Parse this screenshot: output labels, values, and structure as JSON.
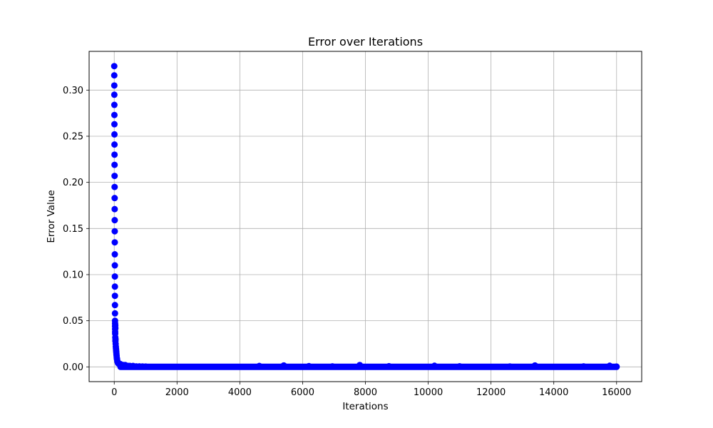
{
  "chart_data": {
    "type": "scatter",
    "title": "Error over Iterations",
    "xlabel": "Iterations",
    "ylabel": "Error Value",
    "xlim": [
      -800,
      16800
    ],
    "ylim": [
      -0.016,
      0.342
    ],
    "xticks": [
      0,
      2000,
      4000,
      6000,
      8000,
      10000,
      12000,
      14000,
      16000
    ],
    "xtick_labels": [
      "0",
      "2000",
      "4000",
      "6000",
      "8000",
      "10000",
      "12000",
      "14000",
      "16000"
    ],
    "yticks": [
      0.0,
      0.05,
      0.1,
      0.15,
      0.2,
      0.25,
      0.3
    ],
    "ytick_labels": [
      "0.00",
      "0.05",
      "0.10",
      "0.15",
      "0.20",
      "0.25",
      "0.30"
    ],
    "grid": true,
    "marker_color": "#0000ff",
    "series": [
      {
        "x": [
          0,
          1,
          2,
          3,
          4,
          5,
          6,
          7,
          8,
          9,
          10,
          11,
          12,
          13,
          14,
          15,
          16,
          17,
          18,
          19,
          20,
          21,
          22,
          23,
          24,
          25,
          26,
          27,
          28,
          29,
          30,
          32,
          34,
          36,
          38,
          40,
          45,
          50,
          55,
          60,
          65,
          70,
          75,
          80,
          85,
          90,
          100,
          110,
          120,
          140,
          160,
          180,
          200,
          250,
          300,
          350,
          400,
          450,
          500,
          600,
          700,
          800,
          900,
          1000,
          4620,
          5400,
          6200,
          6950,
          7820,
          8750,
          10200,
          11000,
          12600,
          13400,
          14950,
          15780,
          16000
        ],
        "y": [
          0.326,
          0.316,
          0.305,
          0.295,
          0.284,
          0.273,
          0.263,
          0.252,
          0.241,
          0.23,
          0.219,
          0.207,
          0.195,
          0.183,
          0.171,
          0.159,
          0.147,
          0.135,
          0.122,
          0.11,
          0.098,
          0.087,
          0.077,
          0.067,
          0.058,
          0.05,
          0.044,
          0.047,
          0.041,
          0.038,
          0.036,
          0.045,
          0.032,
          0.042,
          0.028,
          0.03,
          0.025,
          0.022,
          0.02,
          0.018,
          0.016,
          0.014,
          0.012,
          0.01,
          0.009,
          0.008,
          0.006,
          0.005,
          0.004,
          0.004,
          0.003,
          0.003,
          0.003,
          0.002,
          0.002,
          0.002,
          0.001,
          0.001,
          0.001,
          0.001,
          0.0005,
          0.0005,
          0.0004,
          0.0003,
          0.001,
          0.0015,
          0.0008,
          0.0005,
          0.002,
          0.0007,
          0.0012,
          0.0006,
          0.0004,
          0.0015,
          0.0005,
          0.0012,
          0.0003
        ]
      }
    ]
  }
}
